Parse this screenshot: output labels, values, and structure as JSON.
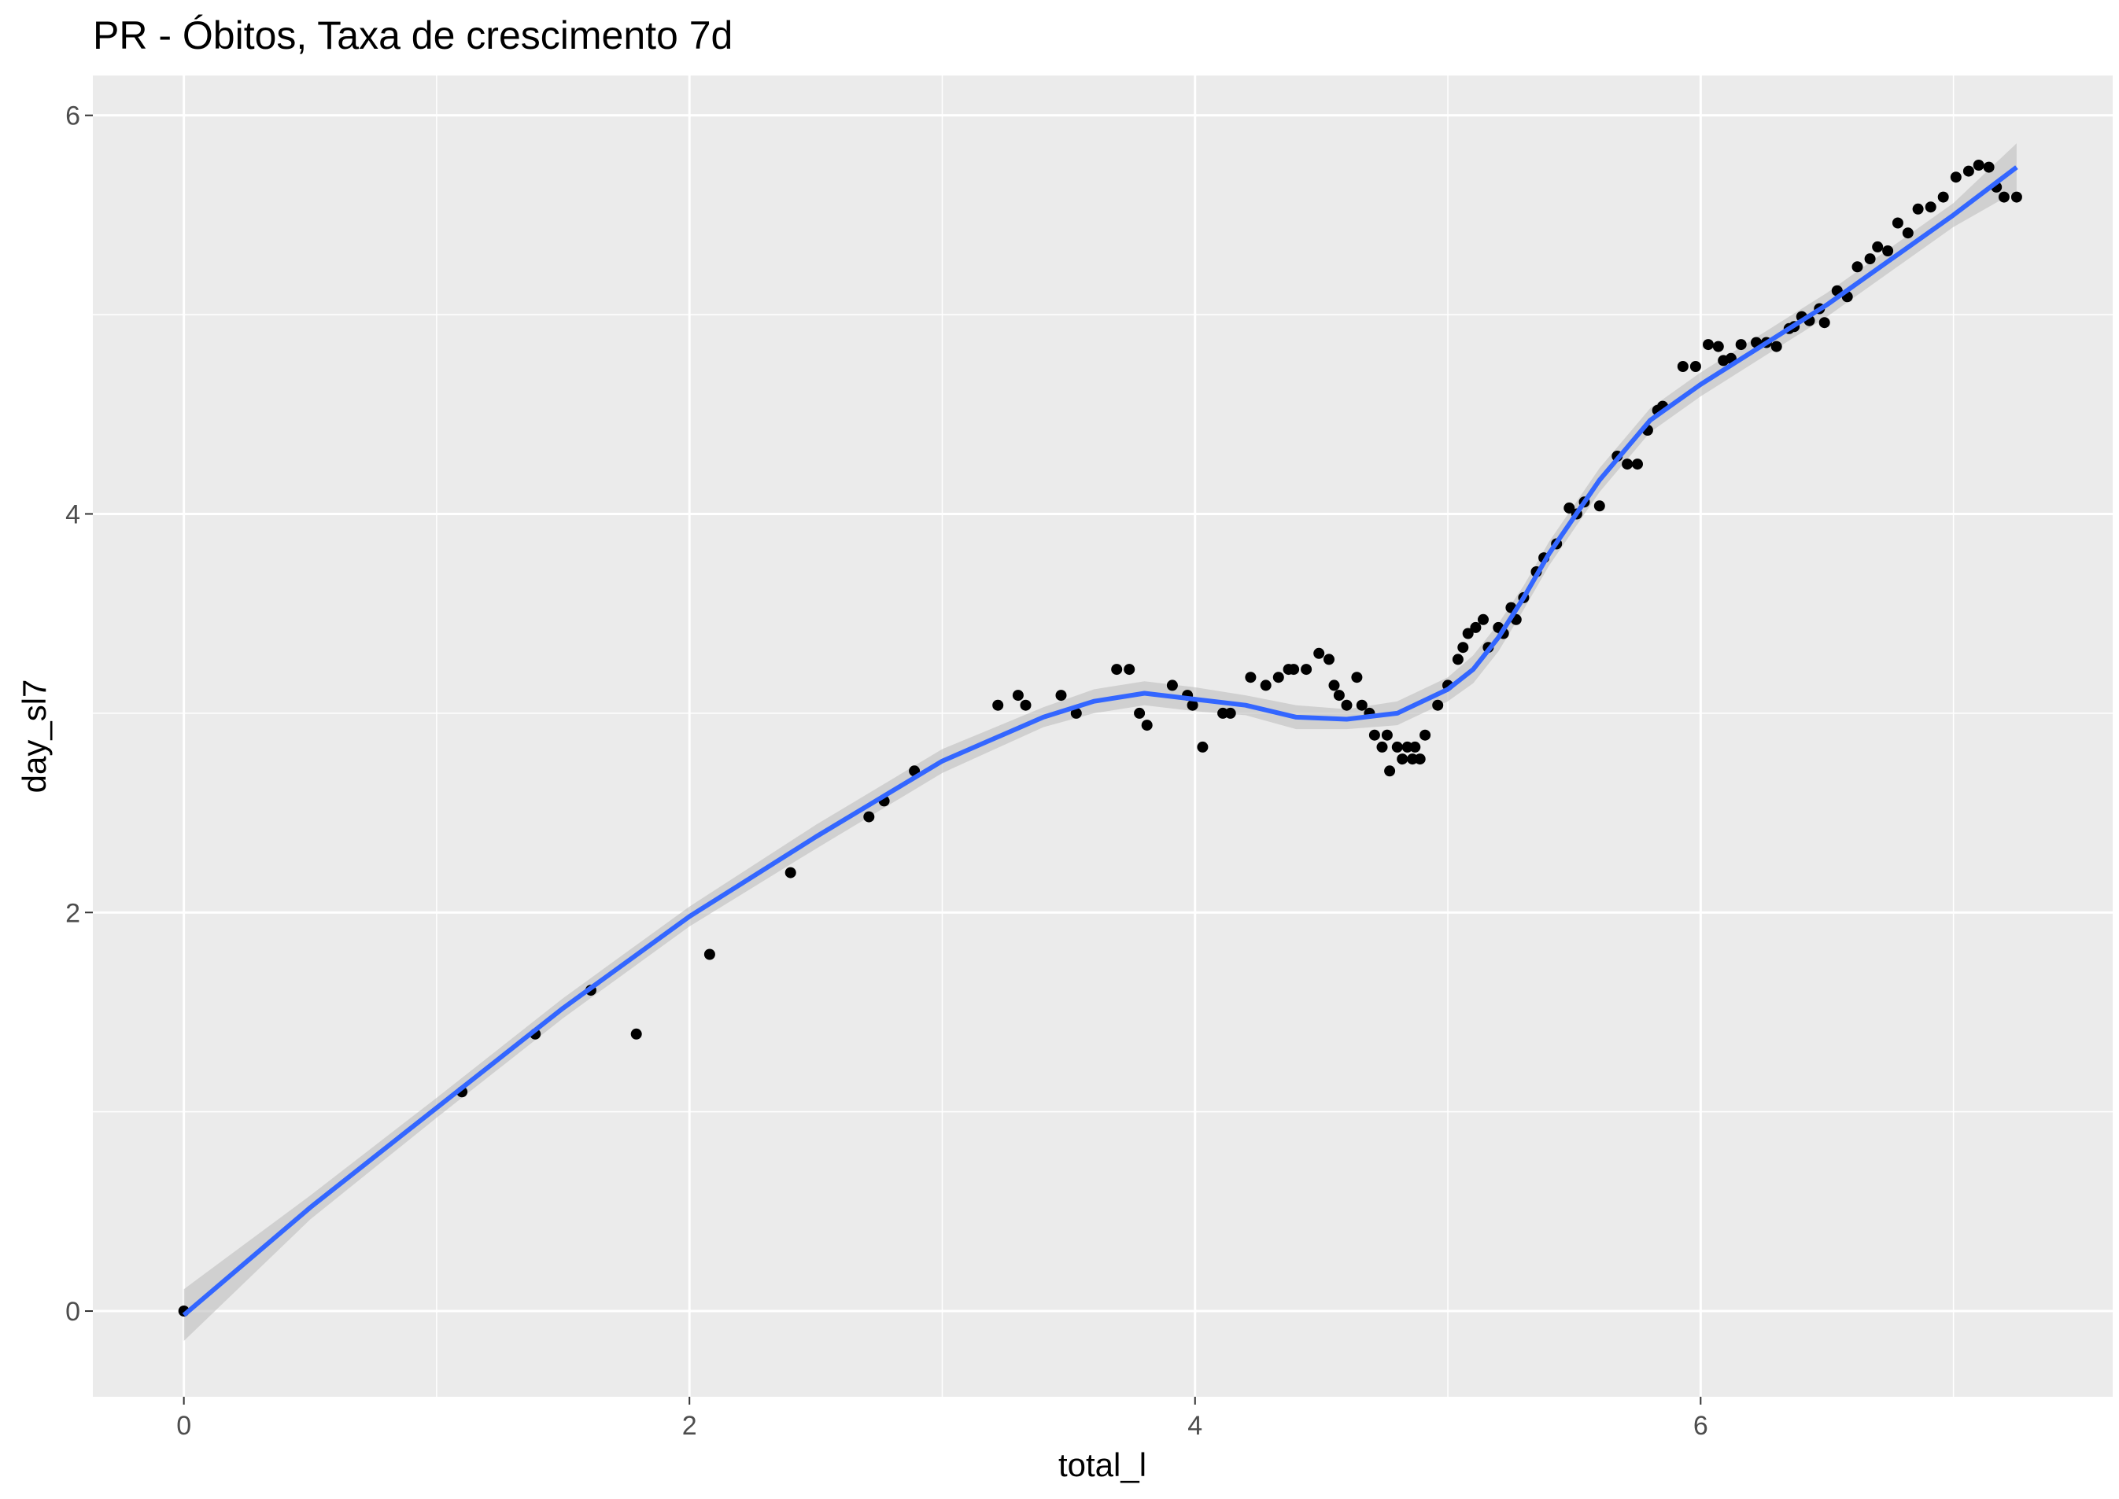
{
  "chart_data": {
    "type": "scatter",
    "title": "PR - Óbitos, Taxa de crescimento 7d",
    "xlabel": "total_l",
    "ylabel": "day_sl7",
    "xlim": [
      -0.36,
      7.63
    ],
    "ylim": [
      -0.43,
      6.2
    ],
    "x_ticks": [
      0,
      2,
      4,
      6
    ],
    "y_ticks": [
      0,
      2,
      4,
      6
    ],
    "x_tick_labels": [
      "0",
      "2",
      "4",
      "6"
    ],
    "y_tick_labels": [
      "0",
      "2",
      "4",
      "6"
    ],
    "grid": true,
    "legend": "none",
    "colors": {
      "points": "#000000",
      "smooth": "#3366ff",
      "ribbon": "#bebebe",
      "panel": "#ebebeb",
      "grid": "#ffffff"
    },
    "points": [
      [
        0.0,
        0.0
      ],
      [
        1.1,
        1.1
      ],
      [
        1.39,
        1.39
      ],
      [
        1.61,
        1.61
      ],
      [
        1.79,
        1.39
      ],
      [
        2.08,
        1.79
      ],
      [
        2.4,
        2.2
      ],
      [
        2.71,
        2.48
      ],
      [
        2.77,
        2.56
      ],
      [
        2.89,
        2.71
      ],
      [
        3.22,
        3.04
      ],
      [
        3.3,
        3.09
      ],
      [
        3.33,
        3.04
      ],
      [
        3.47,
        3.09
      ],
      [
        3.53,
        3.0
      ],
      [
        3.69,
        3.22
      ],
      [
        3.74,
        3.22
      ],
      [
        3.78,
        3.0
      ],
      [
        3.81,
        2.94
      ],
      [
        3.91,
        3.14
      ],
      [
        3.97,
        3.09
      ],
      [
        3.99,
        3.04
      ],
      [
        4.03,
        2.83
      ],
      [
        4.11,
        3.0
      ],
      [
        4.14,
        3.0
      ],
      [
        4.22,
        3.18
      ],
      [
        4.28,
        3.14
      ],
      [
        4.33,
        3.18
      ],
      [
        4.37,
        3.22
      ],
      [
        4.39,
        3.22
      ],
      [
        4.44,
        3.22
      ],
      [
        4.49,
        3.3
      ],
      [
        4.53,
        3.27
      ],
      [
        4.55,
        3.14
      ],
      [
        4.57,
        3.09
      ],
      [
        4.6,
        3.04
      ],
      [
        4.64,
        3.18
      ],
      [
        4.66,
        3.04
      ],
      [
        4.69,
        3.0
      ],
      [
        4.71,
        2.89
      ],
      [
        4.74,
        2.83
      ],
      [
        4.76,
        2.89
      ],
      [
        4.77,
        2.71
      ],
      [
        4.8,
        2.83
      ],
      [
        4.82,
        2.77
      ],
      [
        4.84,
        2.83
      ],
      [
        4.86,
        2.77
      ],
      [
        4.87,
        2.83
      ],
      [
        4.89,
        2.77
      ],
      [
        4.91,
        2.89
      ],
      [
        4.96,
        3.04
      ],
      [
        5.0,
        3.14
      ],
      [
        5.04,
        3.27
      ],
      [
        5.06,
        3.33
      ],
      [
        5.08,
        3.4
      ],
      [
        5.11,
        3.43
      ],
      [
        5.14,
        3.47
      ],
      [
        5.16,
        3.33
      ],
      [
        5.2,
        3.43
      ],
      [
        5.22,
        3.4
      ],
      [
        5.25,
        3.53
      ],
      [
        5.27,
        3.47
      ],
      [
        5.3,
        3.58
      ],
      [
        5.35,
        3.71
      ],
      [
        5.38,
        3.78
      ],
      [
        5.43,
        3.85
      ],
      [
        5.48,
        4.03
      ],
      [
        5.51,
        4.0
      ],
      [
        5.54,
        4.06
      ],
      [
        5.6,
        4.04
      ],
      [
        5.67,
        4.29
      ],
      [
        5.71,
        4.25
      ],
      [
        5.75,
        4.25
      ],
      [
        5.79,
        4.42
      ],
      [
        5.83,
        4.52
      ],
      [
        5.85,
        4.54
      ],
      [
        5.93,
        4.74
      ],
      [
        5.98,
        4.74
      ],
      [
        6.03,
        4.85
      ],
      [
        6.07,
        4.84
      ],
      [
        6.09,
        4.77
      ],
      [
        6.12,
        4.78
      ],
      [
        6.16,
        4.85
      ],
      [
        6.22,
        4.86
      ],
      [
        6.26,
        4.86
      ],
      [
        6.3,
        4.84
      ],
      [
        6.35,
        4.93
      ],
      [
        6.37,
        4.94
      ],
      [
        6.4,
        4.99
      ],
      [
        6.43,
        4.97
      ],
      [
        6.47,
        5.03
      ],
      [
        6.49,
        4.96
      ],
      [
        6.54,
        5.12
      ],
      [
        6.58,
        5.09
      ],
      [
        6.62,
        5.24
      ],
      [
        6.67,
        5.28
      ],
      [
        6.7,
        5.34
      ],
      [
        6.74,
        5.32
      ],
      [
        6.78,
        5.46
      ],
      [
        6.82,
        5.41
      ],
      [
        6.86,
        5.53
      ],
      [
        6.91,
        5.54
      ],
      [
        6.96,
        5.59
      ],
      [
        7.01,
        5.69
      ],
      [
        7.06,
        5.72
      ],
      [
        7.1,
        5.75
      ],
      [
        7.14,
        5.74
      ],
      [
        7.17,
        5.64
      ],
      [
        7.2,
        5.59
      ],
      [
        7.25,
        5.59
      ]
    ],
    "smooth": {
      "x": [
        0.0,
        0.5,
        1.0,
        1.5,
        2.0,
        2.5,
        3.0,
        3.4,
        3.6,
        3.8,
        4.0,
        4.2,
        4.4,
        4.6,
        4.8,
        5.0,
        5.1,
        5.2,
        5.3,
        5.4,
        5.6,
        5.8,
        6.0,
        6.5,
        7.0,
        7.25
      ],
      "y": [
        -0.02,
        0.52,
        1.02,
        1.52,
        1.98,
        2.38,
        2.76,
        2.98,
        3.06,
        3.1,
        3.07,
        3.04,
        2.98,
        2.97,
        3.0,
        3.12,
        3.22,
        3.38,
        3.58,
        3.8,
        4.17,
        4.47,
        4.65,
        5.05,
        5.5,
        5.74
      ],
      "ci": [
        0.13,
        0.06,
        0.05,
        0.05,
        0.05,
        0.06,
        0.06,
        0.05,
        0.06,
        0.06,
        0.06,
        0.05,
        0.06,
        0.05,
        0.06,
        0.06,
        0.07,
        0.07,
        0.06,
        0.06,
        0.06,
        0.06,
        0.06,
        0.06,
        0.06,
        0.12
      ]
    }
  }
}
